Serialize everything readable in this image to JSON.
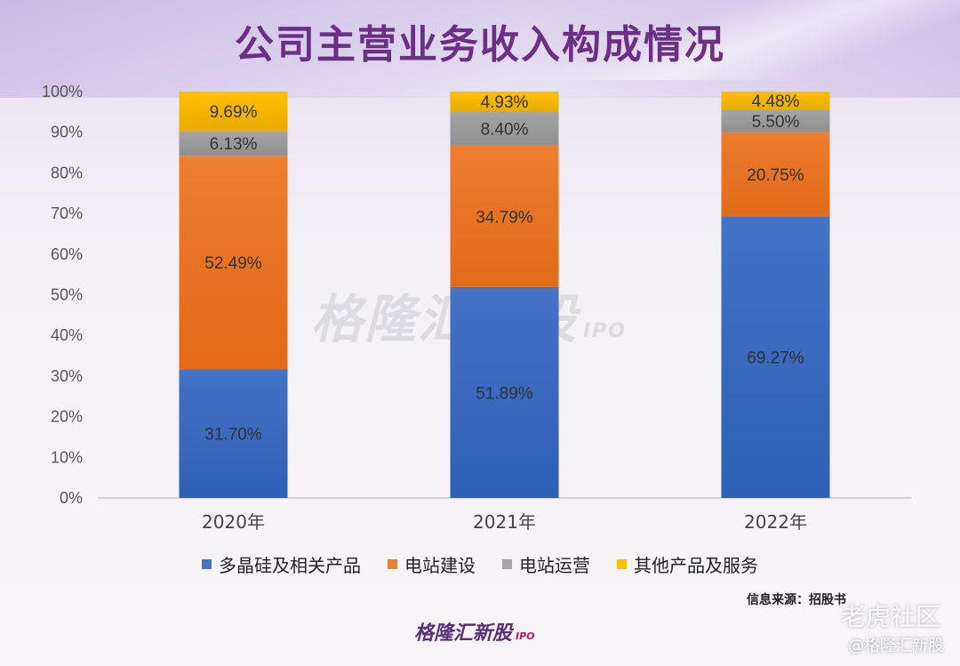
{
  "title": "公司主营业务收入构成情况",
  "chart_data": {
    "type": "bar",
    "stacked": true,
    "categories": [
      "2020年",
      "2021年",
      "2022年"
    ],
    "ylim": [
      0,
      100
    ],
    "y_ticks": [
      "0%",
      "10%",
      "20%",
      "30%",
      "40%",
      "50%",
      "60%",
      "70%",
      "80%",
      "90%",
      "100%"
    ],
    "series": [
      {
        "name": "多晶硅及相关产品",
        "color": "#4472c4",
        "values": [
          31.7,
          51.89,
          69.27
        ],
        "labels": [
          "31.70%",
          "51.89%",
          "69.27%"
        ]
      },
      {
        "name": "电站建设",
        "color": "#ed7d31",
        "values": [
          52.49,
          34.79,
          20.75
        ],
        "labels": [
          "52.49%",
          "34.79%",
          "20.75%"
        ]
      },
      {
        "name": "电站运营",
        "color": "#a5a5a5",
        "values": [
          6.13,
          8.4,
          5.5
        ],
        "labels": [
          "6.13%",
          "8.40%",
          "5.50%"
        ]
      },
      {
        "name": "其他产品及服务",
        "color": "#ffc000",
        "values": [
          9.69,
          4.93,
          4.48
        ],
        "labels": [
          "9.69%",
          "4.93%",
          "4.48%"
        ]
      }
    ],
    "legend_position": "bottom",
    "grid": false
  },
  "source": "信息来源：招股书",
  "brand": {
    "name": "格隆汇新股",
    "tag": "IPO"
  },
  "watermark": {
    "main": "格隆汇新股",
    "tag": "IPO",
    "corner_top": "老虎社区",
    "corner_bottom": "@格隆汇新股"
  }
}
